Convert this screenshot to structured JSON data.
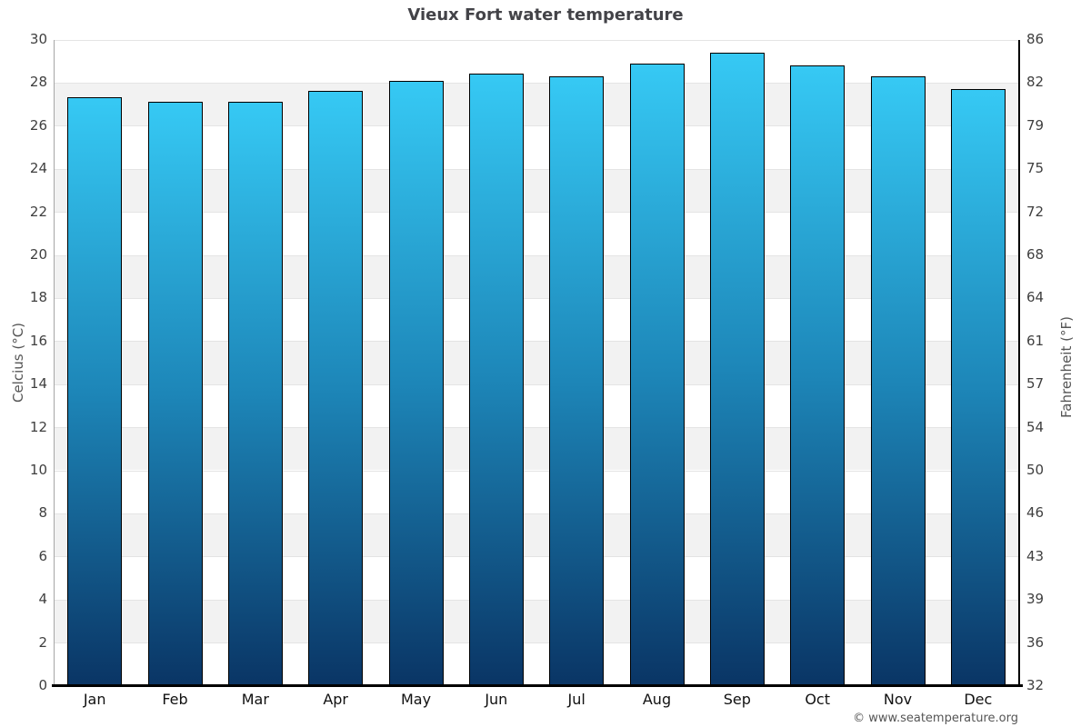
{
  "footer": "© www.seatemperature.org",
  "chart_data": {
    "type": "bar",
    "title": "Vieux Fort water temperature",
    "categories": [
      "Jan",
      "Feb",
      "Mar",
      "Apr",
      "May",
      "Jun",
      "Jul",
      "Aug",
      "Sep",
      "Oct",
      "Nov",
      "Dec"
    ],
    "values": [
      27.3,
      27.1,
      27.1,
      27.6,
      28.1,
      28.4,
      28.3,
      28.9,
      29.4,
      28.8,
      28.3,
      27.7
    ],
    "ylabel_left": "Celcius (°C)",
    "ylabel_right": "Fahrenheit (°F)",
    "ylim": [
      0,
      30
    ],
    "ytick_step": 2,
    "yticks_celsius": [
      "30",
      "28",
      "26",
      "24",
      "22",
      "20",
      "18",
      "16",
      "14",
      "12",
      "10",
      "8",
      "6",
      "4",
      "2",
      "0"
    ],
    "yticks_fahrenheit": [
      "86",
      "82",
      "79",
      "75",
      "72",
      "68",
      "64",
      "61",
      "57",
      "54",
      "50",
      "46",
      "43",
      "39",
      "36",
      "32"
    ],
    "legend": "none",
    "grid": "horizontal alternating bands",
    "colors": {
      "background": "#ffffff",
      "band": "#f2f2f2",
      "gridline": "#e4e4e4",
      "bar_gradient_top": "#36c9f4",
      "bar_gradient_mid": "#1d86b8",
      "bar_gradient_bottom": "#0a3565",
      "bar_border": "#000000",
      "x_axis_line": "#000000",
      "y_axis_line_left": "#a6a6a6",
      "y_axis_line_right": "#000000",
      "title_text": "#434348",
      "tick_text": "#3f3f3f",
      "month_text": "#111111",
      "axis_title_text": "#555555",
      "footer_text": "#555555"
    }
  }
}
